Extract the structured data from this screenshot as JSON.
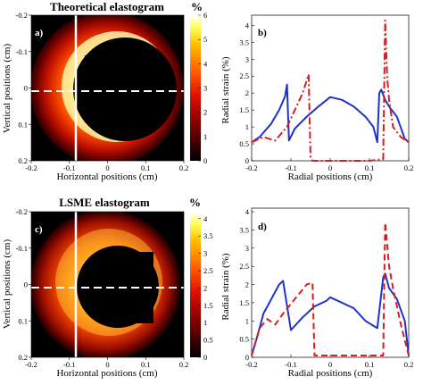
{
  "figure": {
    "top_title": "Theoretical elastogram",
    "bottom_title": "LSME elastogram",
    "colorbar_unit": "%",
    "horizontal_axis_label": "Horizontal positions (cm)",
    "vertical_axis_label": "Vertical positions (cm)",
    "radial_axis_label": "Radial positions (cm)",
    "strain_axis_label": "Radial strain (%)",
    "panel_labels": [
      "a)",
      "b)",
      "c)",
      "d)"
    ]
  },
  "colors": {
    "blue_curve": "#1f32c8",
    "red_curve": "#d81e1e",
    "background_black": "#000000",
    "dashed_line": "#ffffff"
  },
  "chart_data": [
    {
      "type": "heatmap",
      "panel": "a)",
      "title": "Theoretical elastogram",
      "xlabel": "Horizontal positions (cm)",
      "ylabel": "Vertical positions (cm)",
      "xlim": [
        -0.2,
        0.2
      ],
      "ylim": [
        -0.2,
        0.2
      ],
      "x_ticks": [
        "-0.2",
        "-0.1",
        "0",
        "0.1",
        "0.2"
      ],
      "y_ticks": [
        "-0.2",
        "-0.1",
        "0",
        "0.1",
        "0.2"
      ],
      "colorbar": {
        "unit": "%",
        "min": 0,
        "max": 6,
        "ticks": [
          "0",
          "1",
          "2",
          "3",
          "4",
          "5",
          "6"
        ]
      },
      "colormap": "hot",
      "dashed_cut_y": 0,
      "vertical_line_x": -0.06
    },
    {
      "type": "line",
      "panel": "b)",
      "xlabel": "Radial positions (cm)",
      "ylabel": "Radial strain (%)",
      "xlim": [
        -0.2,
        0.2
      ],
      "ylim": [
        0,
        4.3
      ],
      "x_ticks": [
        "-0.2",
        "-0.1",
        "0",
        "0.1",
        "0.2"
      ],
      "y_ticks": [
        "0",
        "0.5",
        "1",
        "1.5",
        "2",
        "2.5",
        "3",
        "3.5",
        "4"
      ],
      "series": [
        {
          "style": "solid",
          "color": "blue",
          "x": [
            -0.2,
            -0.18,
            -0.15,
            -0.13,
            -0.115,
            -0.11,
            -0.105,
            -0.09,
            -0.06,
            -0.03,
            0,
            0.03,
            0.06,
            0.09,
            0.11,
            0.12,
            0.125,
            0.13,
            0.14,
            0.15,
            0.17,
            0.19,
            0.2
          ],
          "y": [
            0.55,
            0.7,
            1.1,
            1.5,
            1.9,
            2.25,
            0.6,
            0.95,
            1.3,
            1.6,
            1.88,
            1.8,
            1.6,
            1.3,
            1.0,
            0.55,
            2.0,
            2.1,
            1.8,
            1.6,
            1.3,
            0.65,
            0.55
          ]
        },
        {
          "style": "dashdot",
          "color": "red",
          "x": [
            -0.2,
            -0.17,
            -0.14,
            -0.11,
            -0.09,
            -0.07,
            -0.055,
            -0.05,
            -0.045,
            0,
            0.05,
            0.1,
            0.135,
            0.14,
            0.145,
            0.15,
            0.16,
            0.18,
            0.2
          ],
          "y": [
            0.55,
            0.7,
            0.6,
            1.0,
            1.5,
            2.0,
            2.55,
            0.05,
            0.0,
            0.0,
            0.0,
            0.0,
            0.05,
            4.15,
            2.5,
            1.8,
            1.0,
            0.7,
            0.55
          ]
        }
      ]
    },
    {
      "type": "heatmap",
      "panel": "c)",
      "title": "LSME elastogram",
      "xlabel": "Horizontal positions (cm)",
      "ylabel": "Vertical positions (cm)",
      "xlim": [
        -0.2,
        0.2
      ],
      "ylim": [
        -0.2,
        0.2
      ],
      "x_ticks": [
        "-0.2",
        "-0.1",
        "0",
        "0.1",
        "0.2"
      ],
      "y_ticks": [
        "-0.2",
        "-0.1",
        "0",
        "0.1",
        "0.2"
      ],
      "colorbar": {
        "unit": "%",
        "min": 0,
        "max": 4.2,
        "ticks": [
          "0",
          "0.5",
          "1",
          "1.5",
          "2",
          "2.5",
          "3",
          "3.5",
          "4"
        ]
      },
      "colormap": "hot",
      "dashed_cut_y": 0,
      "vertical_line_x": -0.06
    },
    {
      "type": "line",
      "panel": "d)",
      "xlabel": "Radial positions (cm)",
      "ylabel": "Radial strain (%)",
      "xlim": [
        -0.2,
        0.2
      ],
      "ylim": [
        0,
        4.1
      ],
      "x_ticks": [
        "-0.2",
        "-0.1",
        "0",
        "0.1",
        "0.2"
      ],
      "y_ticks": [
        "0",
        "0.5",
        "1",
        "1.5",
        "2",
        "2.5",
        "3",
        "3.5",
        "4"
      ],
      "series": [
        {
          "style": "solid",
          "color": "blue",
          "x": [
            -0.2,
            -0.185,
            -0.17,
            -0.15,
            -0.13,
            -0.12,
            -0.1,
            -0.07,
            -0.04,
            -0.01,
            0,
            0.03,
            0.06,
            0.09,
            0.12,
            0.135,
            0.14,
            0.15,
            0.17,
            0.19,
            0.2
          ],
          "y": [
            0.05,
            0.6,
            1.2,
            1.6,
            2.0,
            2.1,
            0.75,
            1.1,
            1.4,
            1.55,
            1.65,
            1.5,
            1.35,
            1.0,
            0.8,
            2.2,
            2.3,
            1.9,
            1.6,
            1.0,
            0.05
          ]
        },
        {
          "style": "dashed",
          "color": "red",
          "x": [
            -0.2,
            -0.18,
            -0.16,
            -0.14,
            -0.12,
            -0.09,
            -0.06,
            -0.045,
            -0.04,
            0,
            0.05,
            0.1,
            0.135,
            0.14,
            0.15,
            0.16,
            0.18,
            0.2
          ],
          "y": [
            0.05,
            0.8,
            1.05,
            0.9,
            1.2,
            1.6,
            2.0,
            2.05,
            0.05,
            0.05,
            0.05,
            0.05,
            0.05,
            3.7,
            2.5,
            1.9,
            0.9,
            0.05
          ]
        }
      ]
    }
  ]
}
